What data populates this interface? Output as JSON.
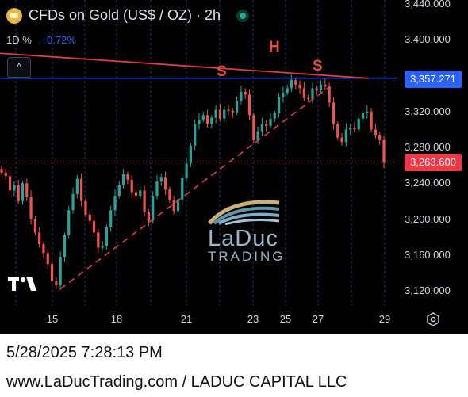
{
  "header": {
    "title": "CFDs on Gold (US$ / OZ) · 2h",
    "interval": "1D %",
    "change": "−0.72%",
    "collapse_glyph": "^"
  },
  "price_labels": {
    "resistance": "3,357.271",
    "current": "3,263.600"
  },
  "annotations": {
    "left_shoulder": "S",
    "head": "H",
    "right_shoulder": "S"
  },
  "watermark": {
    "line1": "LaDuc",
    "line2": "TRADING"
  },
  "footer": {
    "timestamp": "5/28/2025 7:28:13 PM",
    "site": "www.LaDucTrading.com / LADUC CAPITAL LLC"
  },
  "colors": {
    "up": "#26a69a",
    "down": "#ef5350",
    "resistance": "#2962ff",
    "current": "#f23645",
    "trendline": "#e03c4b"
  },
  "chart_data": {
    "type": "candlestick",
    "x_ticks": [
      "15",
      "18",
      "21",
      "23",
      "25",
      "27",
      "29"
    ],
    "y_ticks": [
      3120,
      3160,
      3200,
      3240,
      3280,
      3320,
      3360,
      3400,
      3440
    ],
    "y_tick_labels": [
      "3,120.000",
      "3,160.000",
      "3,200.000",
      "3,240.000",
      "3,280.000",
      "3,320.000",
      "3,360.000",
      "3,400.000",
      "3,440.000"
    ],
    "ylim": [
      3100,
      3445
    ],
    "resistance_level": 3357.271,
    "current_price": 3263.6,
    "legend": "none",
    "grid": "vertical-dashed",
    "closes": [
      3252,
      3248,
      3232,
      3238,
      3220,
      3240,
      3225,
      3200,
      3185,
      3172,
      3162,
      3150,
      3131,
      3126,
      3158,
      3182,
      3210,
      3228,
      3245,
      3220,
      3205,
      3198,
      3185,
      3168,
      3170,
      3191,
      3210,
      3226,
      3238,
      3250,
      3244,
      3230,
      3226,
      3232,
      3208,
      3198,
      3226,
      3242,
      3247,
      3233,
      3221,
      3209,
      3222,
      3246,
      3262,
      3282,
      3306,
      3311,
      3316,
      3306,
      3313,
      3322,
      3312,
      3322,
      3321,
      3319,
      3332,
      3342,
      3339,
      3316,
      3288,
      3298,
      3306,
      3304,
      3312,
      3318,
      3336,
      3341,
      3346,
      3355,
      3350,
      3346,
      3335,
      3334,
      3346,
      3344,
      3350,
      3348,
      3330,
      3306,
      3291,
      3286,
      3300,
      3302,
      3300,
      3312,
      3318,
      3320,
      3300,
      3294,
      3288,
      3263
    ],
    "trend_lines": [
      {
        "kind": "descending",
        "from": [
          "14",
          3385
        ],
        "to": [
          "28",
          3357
        ]
      },
      {
        "kind": "rising-dashed",
        "from": [
          "15",
          3122
        ],
        "to": [
          "27",
          3346
        ]
      }
    ],
    "pattern_labels": [
      {
        "text": "S",
        "x": "22",
        "y": 3357
      },
      {
        "text": "H",
        "x": "24.5",
        "y": 3384
      },
      {
        "text": "S",
        "x": "27",
        "y": 3361
      }
    ]
  }
}
